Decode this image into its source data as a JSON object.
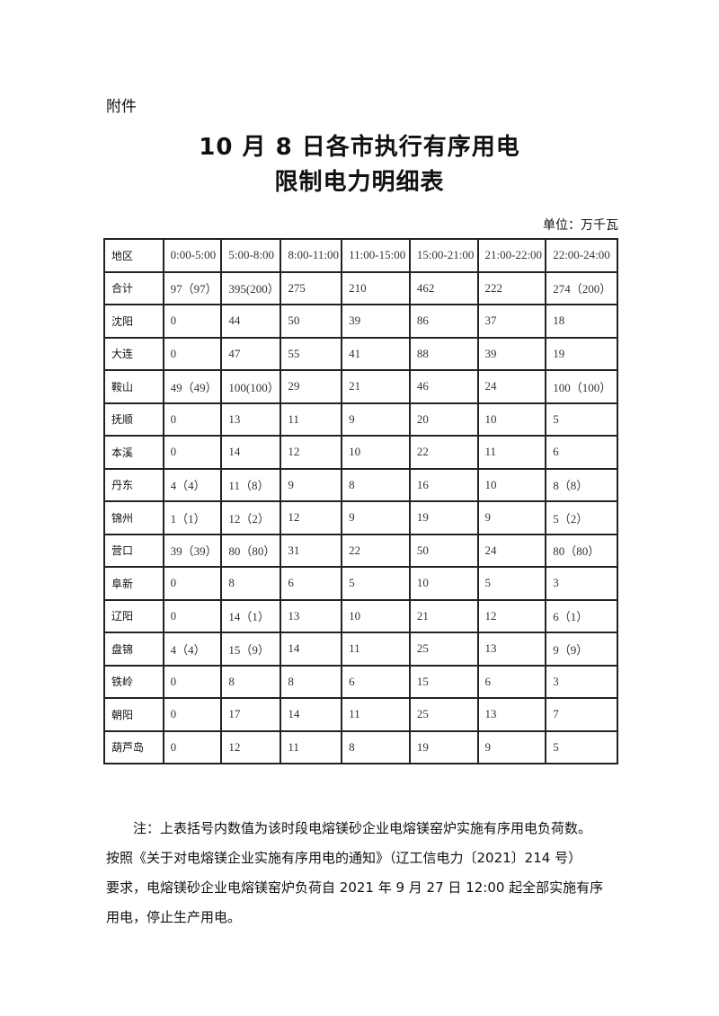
{
  "attachment_label": "附件",
  "title_line1": "10 月 8 日各市执行有序用电",
  "title_line2": "限制电力明细表",
  "unit": "单位：万千瓦",
  "table": {
    "headers": [
      "地区",
      "0:00-5:00",
      "5:00-8:00",
      "8:00-11:00",
      "11:00-15:00",
      "15:00-21:00",
      "21:00-22:00",
      "22:00-24:00"
    ],
    "rows": [
      [
        "合计",
        "97（97）",
        "395(200）",
        "275",
        "210",
        "462",
        "222",
        "274（200）"
      ],
      [
        "沈阳",
        "0",
        "44",
        "50",
        "39",
        "86",
        "37",
        "18"
      ],
      [
        "大连",
        "0",
        "47",
        "55",
        "41",
        "88",
        "39",
        "19"
      ],
      [
        "鞍山",
        "49（49）",
        "100(100）",
        "29",
        "21",
        "46",
        "24",
        "100（100）"
      ],
      [
        "抚顺",
        "0",
        "13",
        "11",
        "9",
        "20",
        "10",
        "5"
      ],
      [
        "本溪",
        "0",
        "14",
        "12",
        "10",
        "22",
        "11",
        "6"
      ],
      [
        "丹东",
        "4（4）",
        "11（8）",
        "9",
        "8",
        "16",
        "10",
        "8（8）"
      ],
      [
        "锦州",
        "1（1）",
        "12（2）",
        "12",
        "9",
        "19",
        "9",
        "5（2）"
      ],
      [
        "营口",
        "39（39）",
        "80（80）",
        "31",
        "22",
        "50",
        "24",
        "80（80）"
      ],
      [
        "阜新",
        "0",
        "8",
        "6",
        "5",
        "10",
        "5",
        "3"
      ],
      [
        "辽阳",
        "0",
        "14（1）",
        "13",
        "10",
        "21",
        "12",
        "6（1）"
      ],
      [
        "盘锦",
        "4（4）",
        "15（9）",
        "14",
        "11",
        "25",
        "13",
        "9（9）"
      ],
      [
        "铁岭",
        "0",
        "8",
        "8",
        "6",
        "15",
        "6",
        "3"
      ],
      [
        "朝阳",
        "0",
        "17",
        "14",
        "11",
        "25",
        "13",
        "7"
      ],
      [
        "葫芦岛",
        "0",
        "12",
        "11",
        "8",
        "19",
        "9",
        "5"
      ]
    ]
  },
  "note": {
    "line1": "注：上表括号内数值为该时段电熔镁砂企业电熔镁窑炉实施有序用电负荷数。",
    "line2": "按照《关于对电熔镁企业实施有序用电的通知》（辽工信电力〔2021〕214 号）",
    "line3": "要求，电熔镁砂企业电熔镁窑炉负荷自 2021 年 9 月 27 日 12:00 起全部实施有序",
    "line4": "用电，停止生产用电。"
  }
}
